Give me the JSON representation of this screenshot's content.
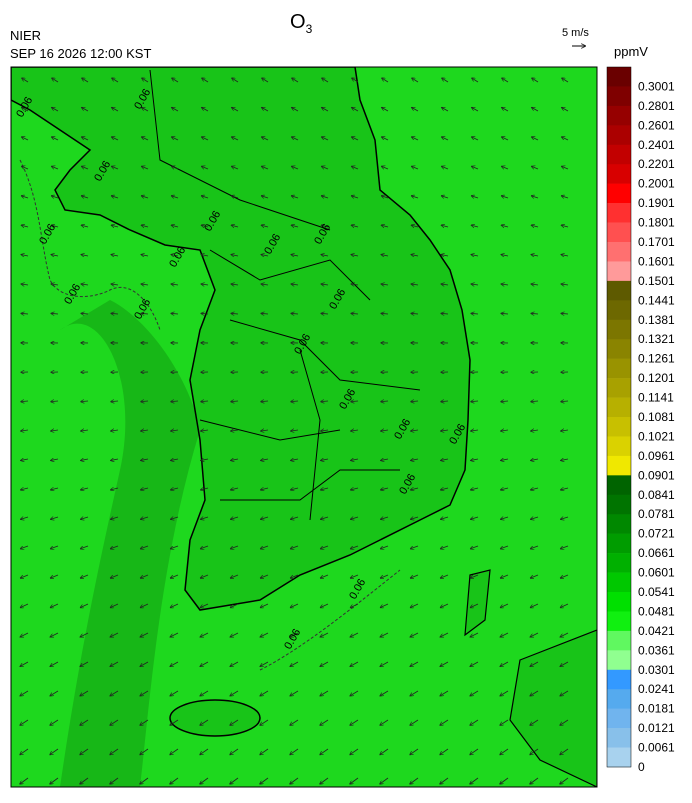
{
  "header": {
    "agency": "NIER",
    "datetime": "SEP 16 2026 12:00 KST",
    "title": {
      "text": "O",
      "subscript": "3"
    }
  },
  "wind_scale": {
    "label": "5 m/s"
  },
  "legend": {
    "unit": "ppmV",
    "ticks": [
      0.3001,
      0.2801,
      0.2601,
      0.2401,
      0.2201,
      0.2001,
      0.1901,
      0.1801,
      0.1701,
      0.1601,
      0.1501,
      0.1441,
      0.1381,
      0.1321,
      0.1261,
      0.1201,
      0.1141,
      0.1081,
      0.1021,
      0.0961,
      0.0901,
      0.0841,
      0.0781,
      0.0721,
      0.0661,
      0.0601,
      0.0541,
      0.0481,
      0.0421,
      0.0361,
      0.0301,
      0.0241,
      0.0181,
      0.0121,
      0.0061,
      0
    ],
    "colors": [
      "#6a0000",
      "#7f0000",
      "#960000",
      "#ab0000",
      "#c20000",
      "#d80000",
      "#ff0000",
      "#ff3030",
      "#ff5050",
      "#ff7070",
      "#ff9a9a",
      "#5e5a00",
      "#6d6800",
      "#7c7600",
      "#8a8400",
      "#999300",
      "#a8a100",
      "#b7b000",
      "#c8c000",
      "#dad200",
      "#f0e800",
      "#006400",
      "#007400",
      "#008800",
      "#009c00",
      "#00b000",
      "#00c800",
      "#00e000",
      "#10f010",
      "#60f860",
      "#90ff90",
      "#3399ff",
      "#55aaee",
      "#70b4ee",
      "#88c0ea",
      "#a8d2ee"
    ]
  },
  "contour_labels": [
    "0.06",
    "0.06",
    "0.06",
    "0.06",
    "0.06",
    "0.06",
    "0.06",
    "0.06",
    "0.06",
    "0.06",
    "0.06",
    "0.06",
    "0.06",
    "0.06",
    "0.06",
    "0.06",
    "0.06",
    "0.06"
  ]
}
